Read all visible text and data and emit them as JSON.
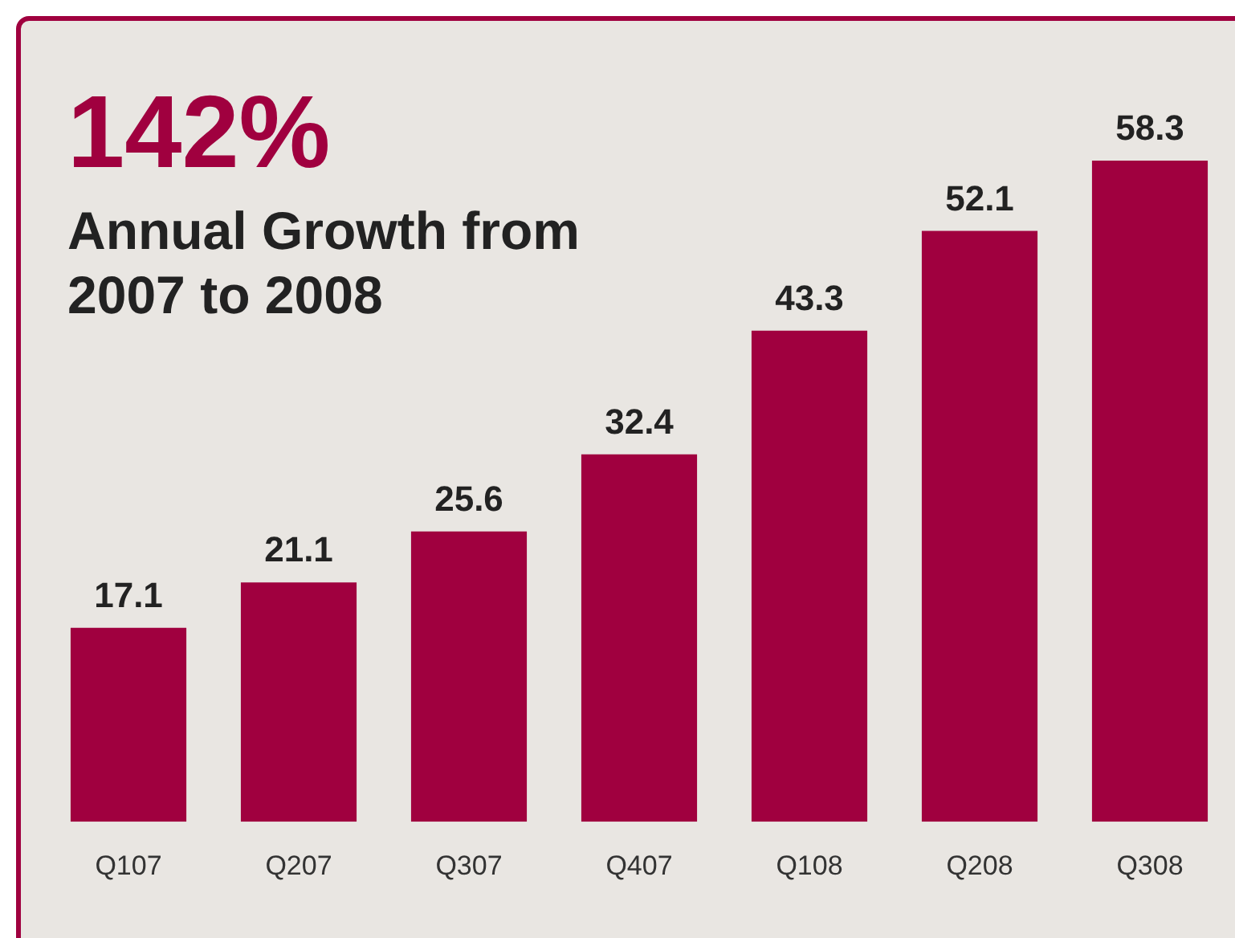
{
  "chart_data": {
    "type": "bar",
    "title": "142%",
    "subtitle": "Annual Growth from 2007 to 2008",
    "categories": [
      "Q107",
      "Q207",
      "Q307",
      "Q407",
      "Q108",
      "Q208",
      "Q308"
    ],
    "values": [
      17.1,
      21.1,
      25.6,
      32.4,
      43.3,
      52.1,
      58.3
    ],
    "color": "#a0003f",
    "data_labels": true
  }
}
